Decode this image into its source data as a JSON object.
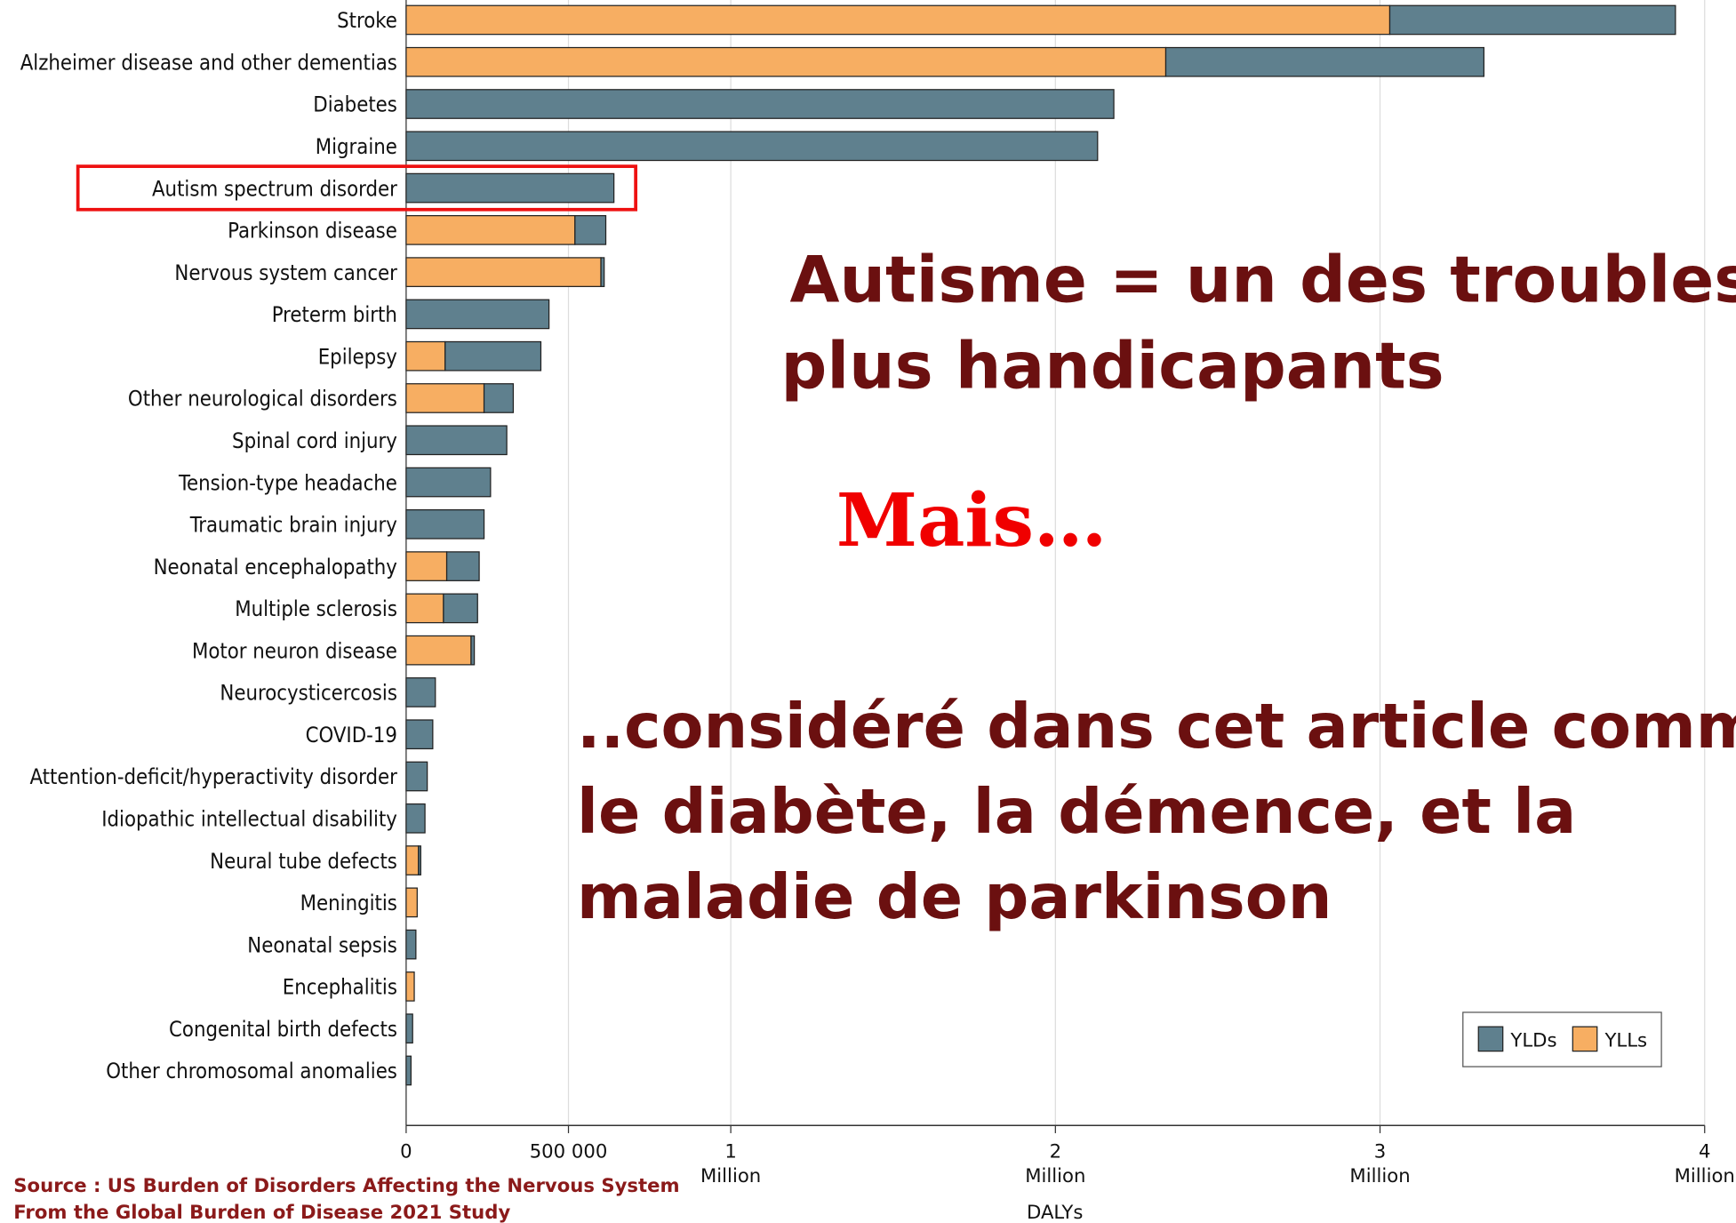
{
  "chart_data": {
    "type": "bar",
    "orientation": "horizontal",
    "stacked": true,
    "xlabel": "DALYs",
    "xlim": [
      0,
      4000000
    ],
    "x_ticks": [
      {
        "value": 0,
        "label": "0",
        "sub": ""
      },
      {
        "value": 500000,
        "label": "500 000",
        "sub": ""
      },
      {
        "value": 1000000,
        "label": "1",
        "sub": "Million"
      },
      {
        "value": 2000000,
        "label": "2",
        "sub": "Million"
      },
      {
        "value": 3000000,
        "label": "3",
        "sub": "Million"
      },
      {
        "value": 4000000,
        "label": "4",
        "sub": "Million"
      }
    ],
    "grid": true,
    "legend_position": "bottom-right",
    "categories": [
      "Stroke",
      "Alzheimer disease and other dementias",
      "Diabetes",
      "Migraine",
      "Autism spectrum disorder",
      "Parkinson disease",
      "Nervous system cancer",
      "Preterm birth",
      "Epilepsy",
      "Other neurological disorders",
      "Spinal cord injury",
      "Tension-type headache",
      "Traumatic brain injury",
      "Neonatal encephalopathy",
      "Multiple sclerosis",
      "Motor neuron disease",
      "Neurocysticercosis",
      "COVID-19",
      "Attention-deficit/hyperactivity disorder",
      "Idiopathic intellectual disability",
      "Neural tube defects",
      "Meningitis",
      "Neonatal sepsis",
      "Encephalitis",
      "Congenital birth defects",
      "Other chromosomal anomalies"
    ],
    "series": [
      {
        "name": "YLLs",
        "color": "#F7AE62",
        "values": [
          3030000,
          2340000,
          0,
          0,
          0,
          520000,
          600000,
          0,
          120000,
          240000,
          0,
          0,
          0,
          125000,
          115000,
          200000,
          0,
          0,
          0,
          0,
          38000,
          34000,
          0,
          25000,
          0,
          0
        ]
      },
      {
        "name": "YLDs",
        "color": "#5F808E",
        "values": [
          880000,
          980000,
          2180000,
          2130000,
          640000,
          95000,
          10000,
          440000,
          295000,
          90000,
          310000,
          260000,
          240000,
          100000,
          105000,
          10000,
          90000,
          82000,
          65000,
          58000,
          7000,
          0,
          30000,
          0,
          20000,
          15000
        ]
      }
    ],
    "highlighted_category": "Autism spectrum disorder",
    "highlight_color": "#EE1111"
  },
  "annotations": {
    "headline_line1": "Autisme = un des troubles les",
    "headline_line2": "plus handicapants",
    "mais": "Mais…",
    "body_line1": "..considéré dans cet article comme",
    "body_line2": "le diabète, la démence, et la",
    "body_line3": "maladie de parkinson",
    "color": "#6B1010"
  },
  "source": {
    "line1": "Source : US Burden of Disorders Affecting the Nervous System",
    "line2": "From the Global Burden of Disease 2021 Study"
  }
}
